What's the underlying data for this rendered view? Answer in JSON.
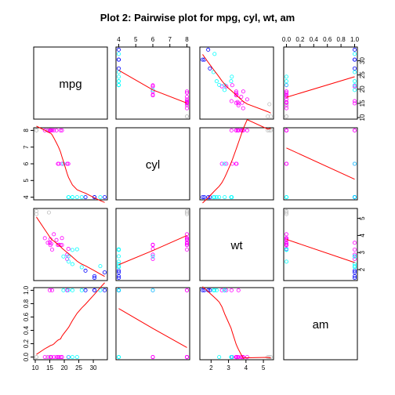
{
  "chart_data": {
    "type": "scatter",
    "title": "Plot 2: Pairwise plot for mpg, cyl, wt, am",
    "variables": [
      "mpg",
      "cyl",
      "wt",
      "am"
    ],
    "ranges": {
      "mpg": [
        10.4,
        33.9
      ],
      "cyl": [
        4,
        8
      ],
      "wt": [
        1.513,
        5.424
      ],
      "am": [
        0,
        1
      ]
    },
    "ticks": {
      "mpg": [
        10,
        15,
        20,
        25,
        30
      ],
      "cyl": [
        4,
        5,
        6,
        7,
        8
      ],
      "wt": [
        2,
        3,
        4,
        5
      ],
      "am": [
        0,
        0.2,
        0.4,
        0.6,
        0.8,
        1
      ]
    },
    "tick_labels": {
      "mpg": [
        "10",
        "15",
        "20",
        "25",
        "30"
      ],
      "cyl": [
        "4",
        "5",
        "6",
        "7",
        "8"
      ],
      "wt": [
        "2",
        "3",
        "4",
        "5"
      ],
      "am": [
        "0.0",
        "0.2",
        "0.4",
        "0.6",
        "0.8",
        "1.0"
      ]
    },
    "points": {
      "mpg": [
        21.0,
        21.0,
        22.8,
        21.4,
        18.7,
        18.1,
        14.3,
        24.4,
        22.8,
        19.2,
        17.8,
        16.4,
        17.3,
        15.2,
        10.4,
        10.4,
        14.7,
        32.4,
        30.4,
        33.9,
        21.5,
        15.5,
        15.2,
        13.3,
        19.2,
        27.3,
        26.0,
        30.4,
        15.8,
        19.7,
        15.0,
        21.4
      ],
      "cyl": [
        6,
        6,
        4,
        6,
        8,
        6,
        8,
        4,
        4,
        6,
        6,
        8,
        8,
        8,
        8,
        8,
        8,
        4,
        4,
        4,
        4,
        8,
        8,
        8,
        8,
        4,
        4,
        4,
        8,
        6,
        8,
        4
      ],
      "wt": [
        2.62,
        2.875,
        2.32,
        3.215,
        3.44,
        3.46,
        3.57,
        3.19,
        3.15,
        3.44,
        3.44,
        4.07,
        3.73,
        3.78,
        5.25,
        5.424,
        5.345,
        2.2,
        1.615,
        1.835,
        2.465,
        3.52,
        3.435,
        3.84,
        3.845,
        1.935,
        2.14,
        1.513,
        3.17,
        2.77,
        3.57,
        2.78
      ],
      "am": [
        1,
        1,
        1,
        0,
        0,
        0,
        0,
        0,
        0,
        0,
        0,
        0,
        0,
        0,
        0,
        0,
        0,
        1,
        1,
        1,
        0,
        0,
        0,
        0,
        0,
        1,
        1,
        1,
        1,
        1,
        1,
        1
      ]
    },
    "point_colors": [
      "#FF00FF",
      "#FF00FF",
      "#00FFFF",
      "#FF00FF",
      "#FF00FF",
      "#FF00FF",
      "#FF00FF",
      "#00FFFF",
      "#00FFFF",
      "#FF00FF",
      "#FF00FF",
      "#FF00FF",
      "#FF00FF",
      "#FF00FF",
      "#BEBEBE",
      "#BEBEBE",
      "#BEBEBE",
      "#00FFFF",
      "#0000FF",
      "#0000FF",
      "#00FFFF",
      "#FF00FF",
      "#FF00FF",
      "#FF00FF",
      "#FF00FF",
      "#0000FF",
      "#00FFFF",
      "#0000FF",
      "#FF00FF",
      "#00FFFF",
      "#FF00FF",
      "#00FFFF"
    ],
    "smooth_color": "#FF0000",
    "grid": false,
    "legend": "none"
  }
}
